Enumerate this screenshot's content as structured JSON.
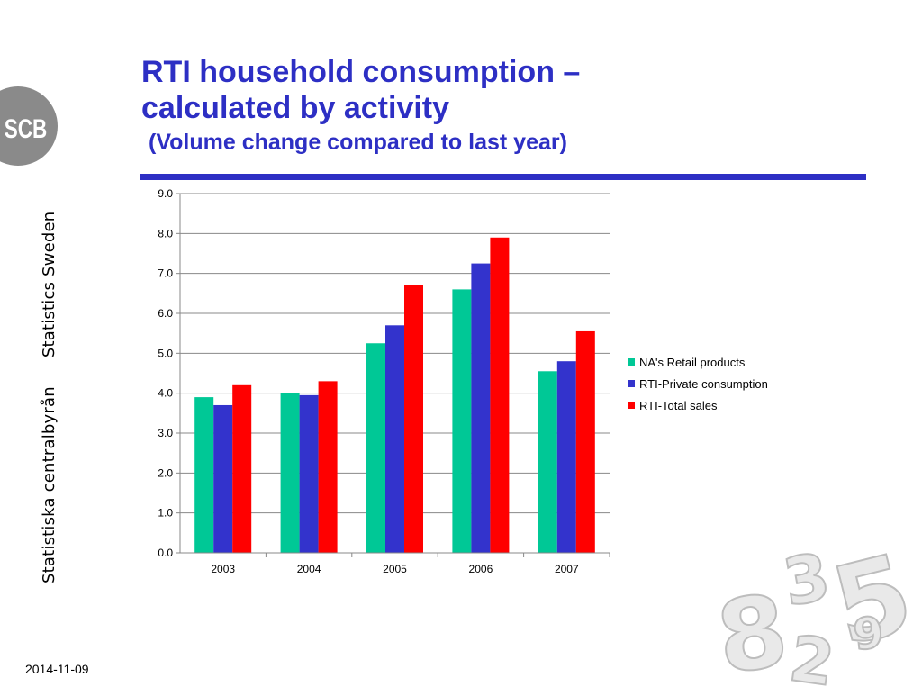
{
  "title": {
    "line1": "RTI household consumption –",
    "line2": "calculated by activity",
    "subtitle": "(Volume change compared to last year)"
  },
  "brand": {
    "logo_text": "SCB",
    "vertical_text_1": "Statistiska centralbyrån",
    "vertical_text_2": "Statistics Sweden"
  },
  "footer": {
    "date": "2014-11-09"
  },
  "decoration": {
    "digits": [
      "8",
      "3",
      "5",
      "2",
      "9"
    ]
  },
  "colors": {
    "title": "#2d2fc4",
    "series": [
      "#00c896",
      "#3333cc",
      "#ff0000"
    ]
  },
  "chart_data": {
    "type": "bar",
    "categories": [
      "2003",
      "2004",
      "2005",
      "2006",
      "2007"
    ],
    "series": [
      {
        "name": "NA's Retail products",
        "values": [
          3.9,
          4.0,
          5.25,
          6.6,
          4.55
        ]
      },
      {
        "name": "RTI-Private consumption",
        "values": [
          3.7,
          3.95,
          5.7,
          7.25,
          4.8
        ]
      },
      {
        "name": "RTI-Total sales",
        "values": [
          4.2,
          4.3,
          6.7,
          7.9,
          5.55
        ]
      }
    ],
    "ylim": [
      0,
      9
    ],
    "yticks": [
      "0.0",
      "1.0",
      "2.0",
      "3.0",
      "4.0",
      "5.0",
      "6.0",
      "7.0",
      "8.0",
      "9.0"
    ],
    "grid": true,
    "legend_position": "right"
  }
}
